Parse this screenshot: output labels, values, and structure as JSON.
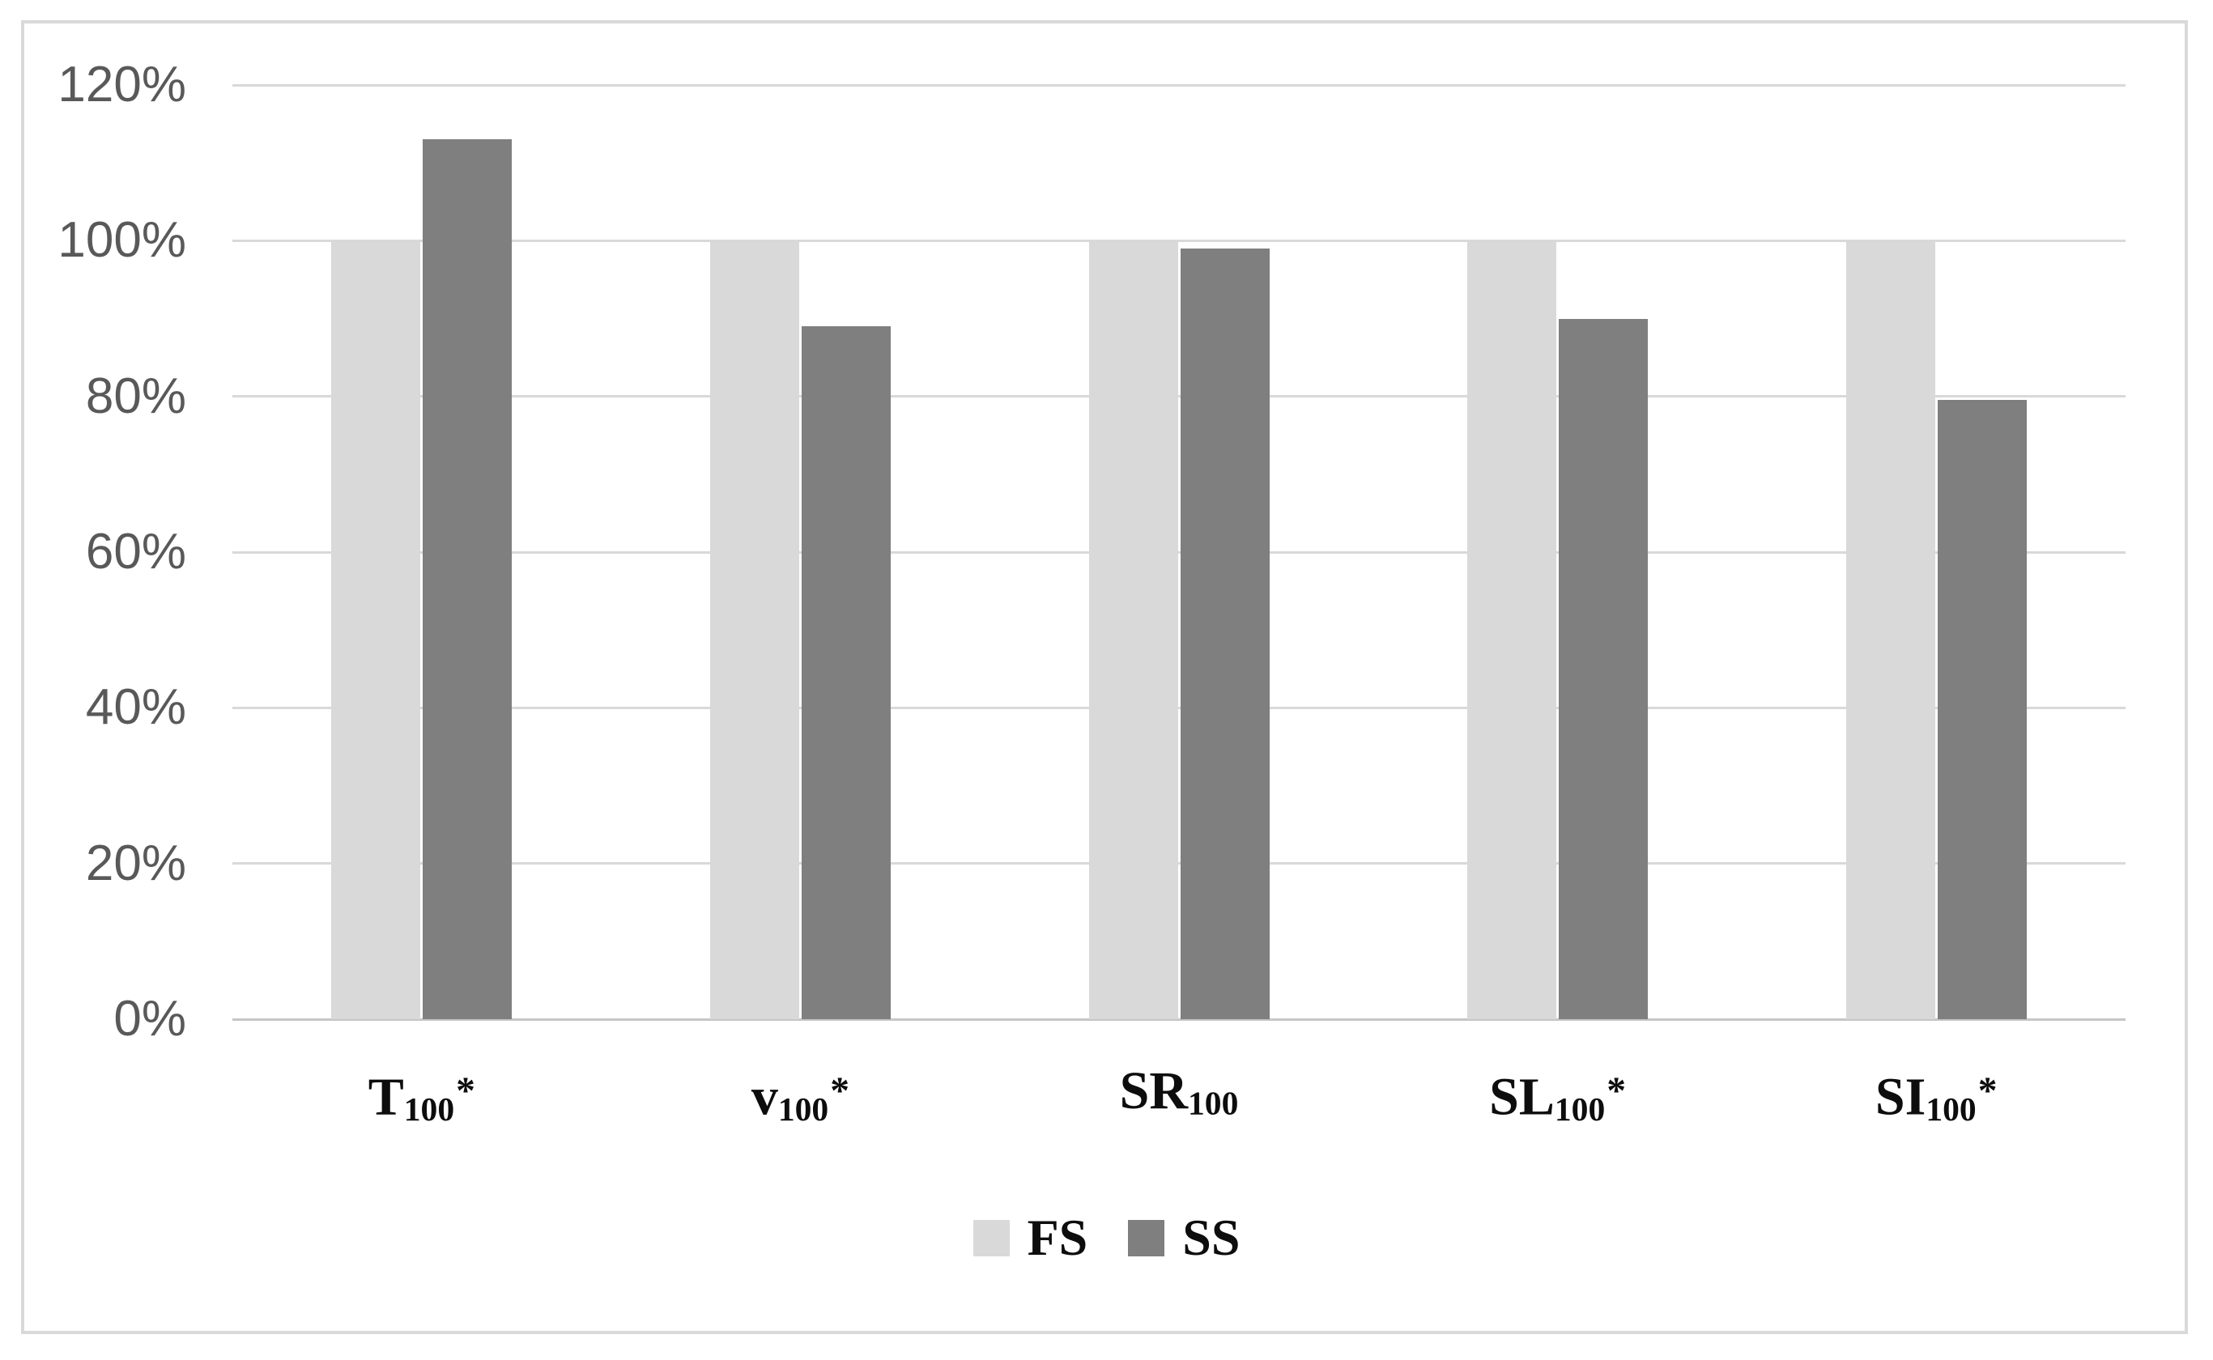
{
  "chart_data": {
    "type": "bar",
    "categories": [
      {
        "base": "T",
        "sub": "100",
        "sup": "*",
        "text": "T100*"
      },
      {
        "base": "v",
        "sub": "100",
        "sup": "*",
        "text": "v100*"
      },
      {
        "base": "SR",
        "sub": "100",
        "sup": "",
        "text": "SR100"
      },
      {
        "base": "SL",
        "sub": "100",
        "sup": "*",
        "text": "SL100*"
      },
      {
        "base": "SI",
        "sub": "100",
        "sup": "*",
        "text": "SI100*"
      }
    ],
    "series": [
      {
        "name": "FS",
        "color": "#d9d9d9",
        "values": [
          100,
          100,
          100,
          100,
          100
        ]
      },
      {
        "name": "SS",
        "color": "#7f7f7f",
        "values": [
          113,
          89,
          99,
          90,
          79.5
        ]
      }
    ],
    "y_axis": {
      "tick_labels": [
        "120%",
        "100%",
        "80%",
        "60%",
        "40%",
        "20%",
        "0%"
      ],
      "tick_values": [
        120,
        100,
        80,
        60,
        40,
        20,
        0
      ],
      "ylim": [
        0,
        120
      ],
      "grid": true,
      "unit": "%"
    },
    "legend_position": "bottom"
  },
  "colors": {
    "fs_bar": "#d9d9d9",
    "ss_bar": "#7f7f7f",
    "gridline": "#d9d9d9",
    "axis_line": "#c6c6c6",
    "tick_text": "#595959",
    "label_text": "#0d0d0d",
    "frame_border": "#d9d9d9",
    "background": "#ffffff"
  }
}
